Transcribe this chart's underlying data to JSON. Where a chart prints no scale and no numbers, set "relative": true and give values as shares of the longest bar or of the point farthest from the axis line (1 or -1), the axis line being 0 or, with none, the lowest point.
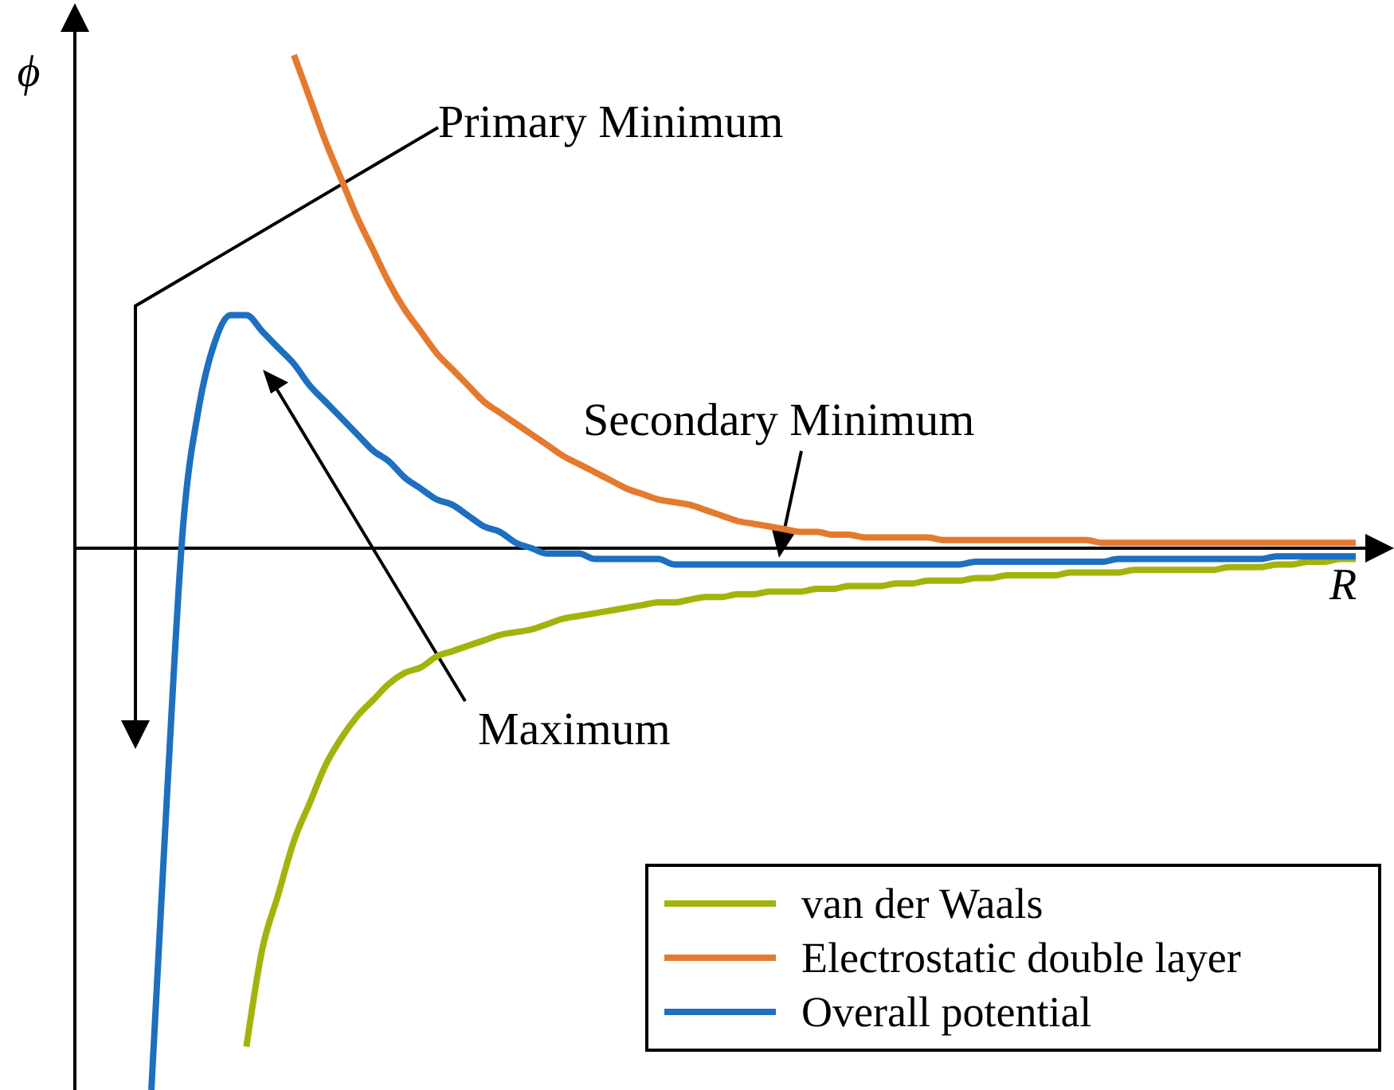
{
  "chart_data": {
    "type": "line",
    "relative": true,
    "xlabel": "R",
    "ylabel": "ϕ",
    "legend": "bottom right",
    "annotations": [
      "Primary Minimum",
      "Secondary Minimum",
      "Maximum"
    ],
    "categories": [
      null,
      null,
      null,
      null,
      null,
      null,
      null,
      null,
      null,
      null,
      null,
      null,
      null,
      null,
      null,
      null,
      null,
      null,
      null,
      null,
      null,
      null,
      null,
      null,
      null,
      null,
      null,
      null,
      null,
      null,
      null,
      null,
      null,
      null,
      null,
      null,
      null,
      null,
      null,
      null,
      null,
      null,
      null,
      null,
      null,
      null,
      null,
      null,
      null,
      null,
      null,
      null,
      null,
      null,
      null,
      null,
      null,
      null,
      null,
      null,
      null,
      null,
      null,
      null,
      null,
      null,
      null,
      null,
      null,
      null,
      null,
      null,
      null,
      null,
      null,
      null,
      null
    ],
    "series": [
      {
        "name": "van der Waals",
        "color": "#a2b40c",
        "values": [
          null,
          null,
          null,
          null,
          null,
          null,
          -0.92,
          -0.74,
          -0.64,
          -0.54,
          -0.47,
          -0.4,
          -0.35,
          -0.31,
          -0.28,
          -0.25,
          -0.23,
          -0.22,
          -0.2,
          -0.19,
          -0.18,
          -0.17,
          -0.16,
          -0.155,
          -0.15,
          -0.14,
          -0.13,
          -0.125,
          -0.12,
          -0.115,
          -0.11,
          -0.105,
          -0.1,
          -0.1,
          -0.095,
          -0.09,
          -0.09,
          -0.085,
          -0.085,
          -0.08,
          -0.08,
          -0.08,
          -0.075,
          -0.075,
          -0.07,
          -0.07,
          -0.07,
          -0.065,
          -0.065,
          -0.06,
          -0.06,
          -0.06,
          -0.055,
          -0.055,
          -0.05,
          -0.05,
          -0.05,
          -0.05,
          -0.045,
          -0.045,
          -0.045,
          -0.045,
          -0.04,
          -0.04,
          -0.04,
          -0.04,
          -0.04,
          -0.04,
          -0.035,
          -0.035,
          -0.035,
          -0.03,
          -0.03,
          -0.025,
          -0.025,
          -0.02,
          -0.02
        ]
      },
      {
        "name": "Electrostatic double layer",
        "color": "#e47a2e",
        "values": [
          null,
          null,
          null,
          null,
          null,
          null,
          null,
          null,
          null,
          0.91,
          0.83,
          0.75,
          0.68,
          0.61,
          0.55,
          0.49,
          0.44,
          0.4,
          0.36,
          0.33,
          0.3,
          0.27,
          0.25,
          0.23,
          0.21,
          0.19,
          0.17,
          0.155,
          0.14,
          0.125,
          0.11,
          0.1,
          0.09,
          0.085,
          0.08,
          0.07,
          0.06,
          0.05,
          0.045,
          0.04,
          0.035,
          0.03,
          0.03,
          0.025,
          0.025,
          0.02,
          0.02,
          0.02,
          0.02,
          0.02,
          0.015,
          0.015,
          0.015,
          0.015,
          0.015,
          0.015,
          0.015,
          0.015,
          0.015,
          0.015,
          0.01,
          0.01,
          0.01,
          0.01,
          0.01,
          0.01,
          0.01,
          0.01,
          0.01,
          0.01,
          0.01,
          0.01,
          0.01,
          0.01,
          0.01,
          0.01,
          0.01
        ]
      },
      {
        "name": "Overall potential",
        "color": "#1d6fc0",
        "values": [
          -1,
          -0.45,
          0.04,
          0.26,
          0.38,
          0.43,
          0.43,
          0.4,
          0.37,
          0.34,
          0.3,
          0.27,
          0.24,
          0.21,
          0.18,
          0.16,
          0.13,
          0.11,
          0.09,
          0.08,
          0.06,
          0.04,
          0.03,
          0.01,
          0,
          -0.01,
          -0.01,
          -0.01,
          -0.02,
          -0.02,
          -0.02,
          -0.02,
          -0.02,
          -0.03,
          -0.03,
          -0.03,
          -0.03,
          -0.03,
          -0.03,
          -0.03,
          -0.03,
          -0.03,
          -0.03,
          -0.03,
          -0.03,
          -0.03,
          -0.03,
          -0.03,
          -0.03,
          -0.03,
          -0.03,
          -0.03,
          -0.025,
          -0.025,
          -0.025,
          -0.025,
          -0.025,
          -0.025,
          -0.025,
          -0.025,
          -0.025,
          -0.02,
          -0.02,
          -0.02,
          -0.02,
          -0.02,
          -0.02,
          -0.02,
          -0.02,
          -0.02,
          -0.02,
          -0.015,
          -0.015,
          -0.015,
          -0.015,
          -0.015,
          -0.015
        ]
      }
    ]
  }
}
